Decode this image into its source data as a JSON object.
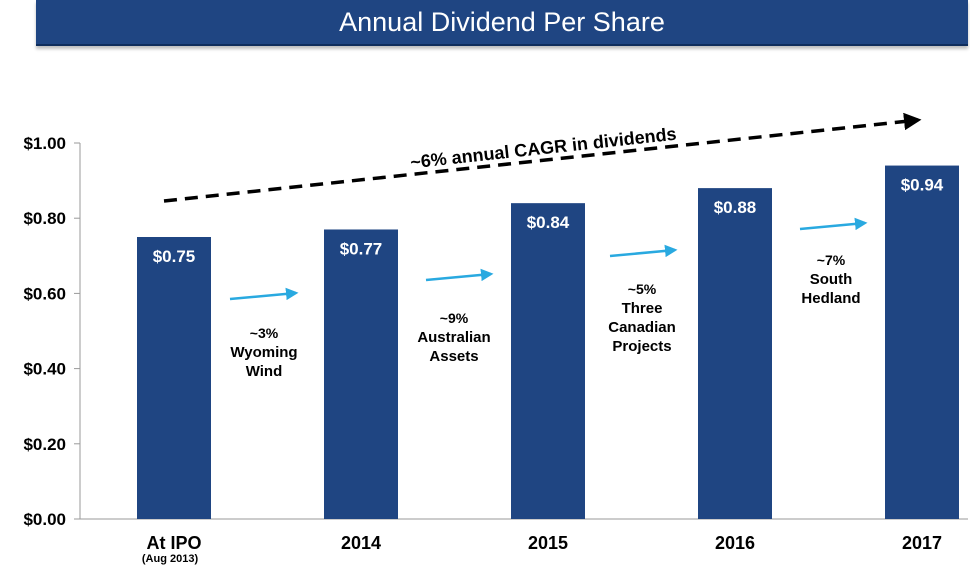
{
  "header": {
    "title": "Annual Dividend Per Share"
  },
  "colors": {
    "banner": "#1f4582",
    "bar": "#1f4582",
    "arrow": "#29a9e0",
    "trend": "#000000"
  },
  "chart_data": {
    "type": "bar",
    "title": "",
    "xlabel": "",
    "ylabel": "",
    "ylim": [
      0,
      1.0
    ],
    "y_ticks": [
      "$0.00",
      "$0.20",
      "$0.40",
      "$0.60",
      "$0.80",
      "$1.00"
    ],
    "categories": [
      "At IPO",
      "2014",
      "2015",
      "2016",
      "2017"
    ],
    "category_sublabels": [
      "(Aug 2013)",
      "",
      "",
      "",
      ""
    ],
    "values": [
      0.75,
      0.77,
      0.84,
      0.88,
      0.94
    ],
    "value_labels": [
      "$0.75",
      "$0.77",
      "$0.84",
      "$0.88",
      "$0.94"
    ],
    "grid": false,
    "trend_label": "~6% annual CAGR in dividends",
    "annotations": [
      {
        "lines": [
          "~3%",
          "Wyoming",
          "Wind"
        ]
      },
      {
        "lines": [
          "~9%",
          "Australian",
          "Assets"
        ]
      },
      {
        "lines": [
          "~5%",
          "Three",
          "Canadian",
          "Projects"
        ]
      },
      {
        "lines": [
          "~7%",
          "South",
          "Hedland"
        ]
      }
    ]
  }
}
